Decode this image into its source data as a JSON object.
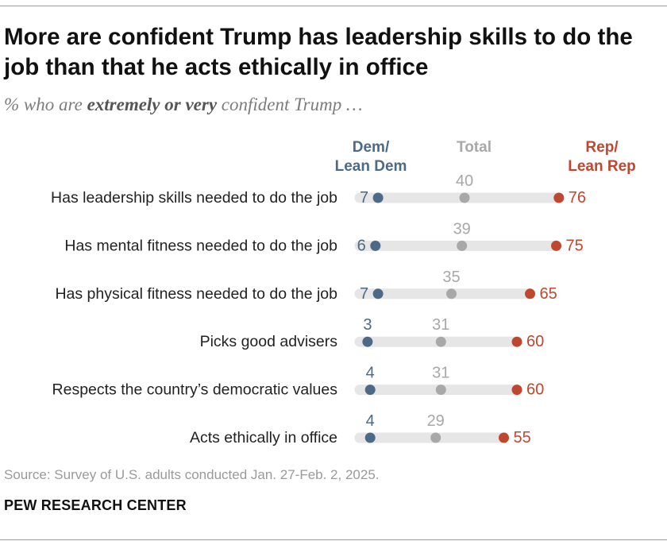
{
  "header": {
    "title": "More are confident Trump has leadership skills to do the job than that he acts ethically in office",
    "subtitle_pre": "% who are ",
    "subtitle_bold": "extremely or very",
    "subtitle_post": " confident Trump …"
  },
  "colors": {
    "dem": "#4c6a85",
    "total": "#a8a8a8",
    "rep": "#c0472f",
    "bar": "#e6e6e6"
  },
  "chart_data": {
    "type": "dot-plot",
    "xlim": [
      0,
      100
    ],
    "legend": {
      "dem_line1": "Dem/",
      "dem_line2": "Lean Dem",
      "total": "Total",
      "rep_line1": "Rep/",
      "rep_line2": "Lean Rep"
    },
    "categories": [
      "Has leadership skills needed to do the job",
      "Has mental fitness needed to do the job",
      "Has physical fitness needed to do the job",
      "Picks good advisers",
      "Respects the country’s democratic values",
      "Acts ethically in office"
    ],
    "series": [
      {
        "name": "Dem/Lean Dem",
        "values": [
          7,
          6,
          7,
          3,
          4,
          4
        ]
      },
      {
        "name": "Total",
        "values": [
          40,
          39,
          35,
          31,
          31,
          29
        ]
      },
      {
        "name": "Rep/Lean Rep",
        "values": [
          76,
          75,
          65,
          60,
          60,
          55
        ]
      }
    ]
  },
  "footer": {
    "source": "Source: Survey of U.S. adults conducted Jan. 27-Feb. 2, 2025.",
    "brand": "PEW RESEARCH CENTER"
  }
}
